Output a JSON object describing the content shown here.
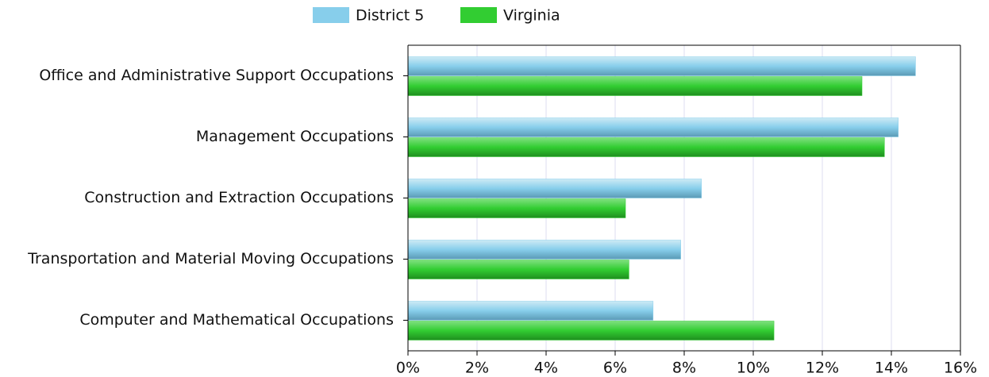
{
  "chart_data": {
    "type": "bar",
    "orientation": "horizontal",
    "categories": [
      "Office and Administrative Support Occupations",
      "Management Occupations",
      "Construction and Extraction Occupations",
      "Transportation and Material Moving Occupations",
      "Computer and Mathematical Occupations"
    ],
    "series": [
      {
        "name": "District 5",
        "color": "#87ceeb",
        "values": [
          14.7,
          14.2,
          8.5,
          7.9,
          7.1
        ]
      },
      {
        "name": "Virginia",
        "color": "#32cd32",
        "values": [
          13.15,
          13.8,
          6.3,
          6.4,
          10.6
        ]
      }
    ],
    "xlim": [
      0,
      16
    ],
    "xticks": [
      {
        "value": 0,
        "label": "0%"
      },
      {
        "value": 2,
        "label": "2%"
      },
      {
        "value": 4,
        "label": "4%"
      },
      {
        "value": 6,
        "label": "6%"
      },
      {
        "value": 8,
        "label": "8%"
      },
      {
        "value": 10,
        "label": "10%"
      },
      {
        "value": 12,
        "label": "12%"
      },
      {
        "value": 14,
        "label": "14%"
      },
      {
        "value": 16,
        "label": "16%"
      }
    ],
    "grid": true,
    "legend": "top"
  }
}
